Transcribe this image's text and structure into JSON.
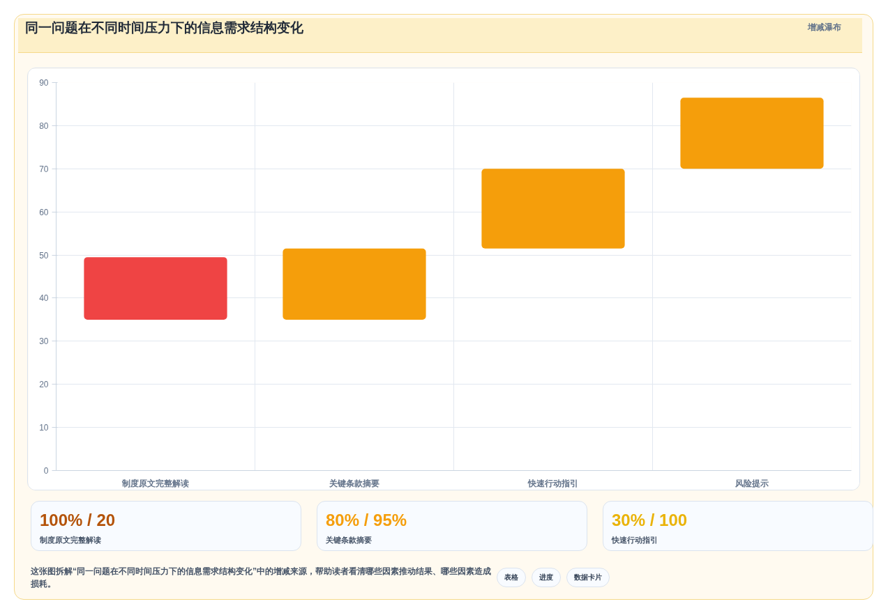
{
  "chart_data": {
    "type": "bar",
    "title": "同一问题在不同时间压力下的信息需求结构变化",
    "categories": [
      "制度原文完整解读",
      "关键条款摘要",
      "快速行动指引",
      "风险提示"
    ],
    "base": [
      35,
      35,
      51.5,
      70
    ],
    "values": [
      14.5,
      16.5,
      18.5,
      16.5
    ],
    "colors": [
      "#ef4444",
      "#f59e0b",
      "#f59e0b",
      "#f59e0b"
    ],
    "ylim": [
      0,
      90
    ],
    "yticks": [
      0,
      10,
      20,
      30,
      40,
      50,
      60,
      70,
      80,
      90
    ],
    "grid": true,
    "annotations": [
      "增减瀑布",
      "100% / 20",
      "制度原文完整解读",
      "80% / 95%",
      "关键条款摘要",
      "30% / 100",
      "快速行动指引",
      "这张图拆解“同一问题在不同时间压力下的信息需求结构变化”中的增减来源，帮助读者看清哪些因素推动结果、哪些因素造成损耗。",
      "表格",
      "进度",
      "数据卡片"
    ]
  }
}
